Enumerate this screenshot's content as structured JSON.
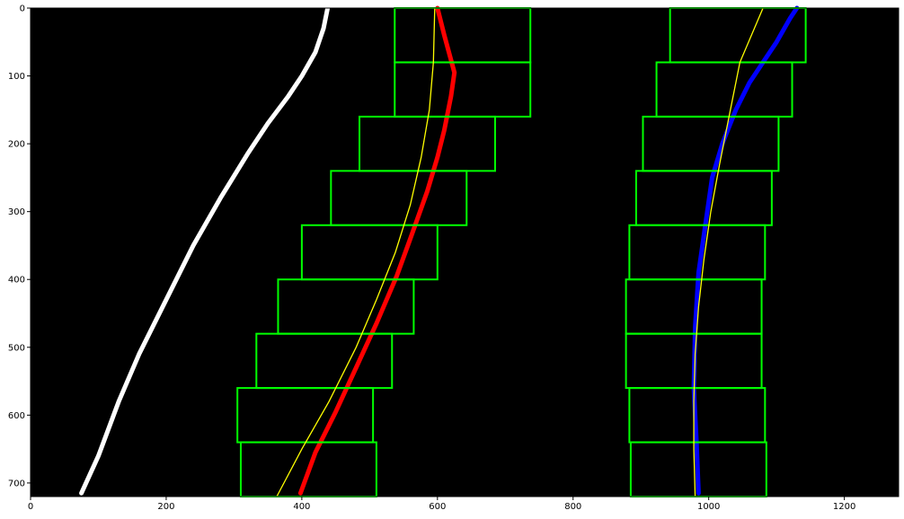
{
  "chart_data": {
    "type": "scatter",
    "title": "",
    "xlabel": "",
    "ylabel": "",
    "xlim": [
      0,
      1280
    ],
    "ylim": [
      720,
      0
    ],
    "y_inverted": true,
    "grid": false,
    "background": "#000000",
    "xticks": [
      0,
      200,
      400,
      600,
      800,
      1000,
      1200
    ],
    "yticks": [
      0,
      100,
      200,
      300,
      400,
      500,
      600,
      700
    ],
    "colors": {
      "left_lane_pixels": "#ff0000",
      "right_lane_pixels": "#0000ff",
      "other_pixels": "#ffffff",
      "search_windows": "#00ff00",
      "fit_lines": "#ffff00"
    },
    "series": [
      {
        "kind": "pixels",
        "color": "#ffffff",
        "polyline": [
          [
            75,
            715
          ],
          [
            100,
            660
          ],
          [
            130,
            580
          ],
          [
            160,
            510
          ],
          [
            200,
            430
          ],
          [
            240,
            350
          ],
          [
            280,
            280
          ],
          [
            320,
            215
          ],
          [
            350,
            170
          ],
          [
            380,
            130
          ],
          [
            400,
            100
          ],
          [
            420,
            65
          ],
          [
            432,
            30
          ],
          [
            438,
            0
          ]
        ]
      },
      {
        "kind": "pixels",
        "color": "#ff0000",
        "polyline": [
          [
            398,
            715
          ],
          [
            420,
            655
          ],
          [
            450,
            595
          ],
          [
            480,
            530
          ],
          [
            510,
            465
          ],
          [
            540,
            395
          ],
          [
            560,
            340
          ],
          [
            585,
            270
          ],
          [
            600,
            220
          ],
          [
            610,
            180
          ],
          [
            620,
            130
          ],
          [
            625,
            95
          ],
          [
            610,
            40
          ],
          [
            600,
            0
          ]
        ]
      },
      {
        "kind": "pixels",
        "color": "#0000ff",
        "polyline": [
          [
            985,
            715
          ],
          [
            982,
            640
          ],
          [
            978,
            560
          ],
          [
            980,
            470
          ],
          [
            985,
            390
          ],
          [
            995,
            320
          ],
          [
            1005,
            250
          ],
          [
            1020,
            200
          ],
          [
            1040,
            150
          ],
          [
            1060,
            110
          ],
          [
            1080,
            80
          ],
          [
            1100,
            50
          ],
          [
            1120,
            15
          ],
          [
            1130,
            0
          ]
        ]
      },
      {
        "kind": "window_pairs",
        "color": "#00ff00",
        "left_windows": [
          [
            310,
            510,
            640,
            720
          ],
          [
            305,
            505,
            560,
            640
          ],
          [
            333,
            533,
            480,
            560
          ],
          [
            365,
            565,
            400,
            480
          ],
          [
            400,
            600,
            320,
            400
          ],
          [
            443,
            643,
            240,
            320
          ],
          [
            485,
            685,
            160,
            240
          ],
          [
            537,
            737,
            80,
            160
          ],
          [
            537,
            737,
            0,
            80
          ]
        ],
        "right_windows": [
          [
            885,
            1085,
            640,
            720
          ],
          [
            883,
            1083,
            560,
            640
          ],
          [
            878,
            1078,
            480,
            560
          ],
          [
            878,
            1078,
            400,
            480
          ],
          [
            883,
            1083,
            320,
            400
          ],
          [
            893,
            1093,
            240,
            320
          ],
          [
            903,
            1103,
            160,
            240
          ],
          [
            923,
            1123,
            80,
            160
          ],
          [
            943,
            1143,
            0,
            80
          ]
        ]
      },
      {
        "kind": "fit",
        "color": "#ffff00",
        "points": [
          [
            363,
            720
          ],
          [
            400,
            650
          ],
          [
            440,
            580
          ],
          [
            480,
            500
          ],
          [
            510,
            430
          ],
          [
            538,
            360
          ],
          [
            560,
            290
          ],
          [
            576,
            220
          ],
          [
            588,
            150
          ],
          [
            594,
            80
          ],
          [
            596,
            0
          ]
        ]
      },
      {
        "kind": "fit",
        "color": "#ffff00",
        "points": [
          [
            980,
            720
          ],
          [
            978,
            650
          ],
          [
            978,
            580
          ],
          [
            980,
            510
          ],
          [
            985,
            440
          ],
          [
            993,
            370
          ],
          [
            1003,
            300
          ],
          [
            1016,
            230
          ],
          [
            1030,
            160
          ],
          [
            1046,
            80
          ],
          [
            1080,
            0
          ]
        ]
      }
    ]
  }
}
